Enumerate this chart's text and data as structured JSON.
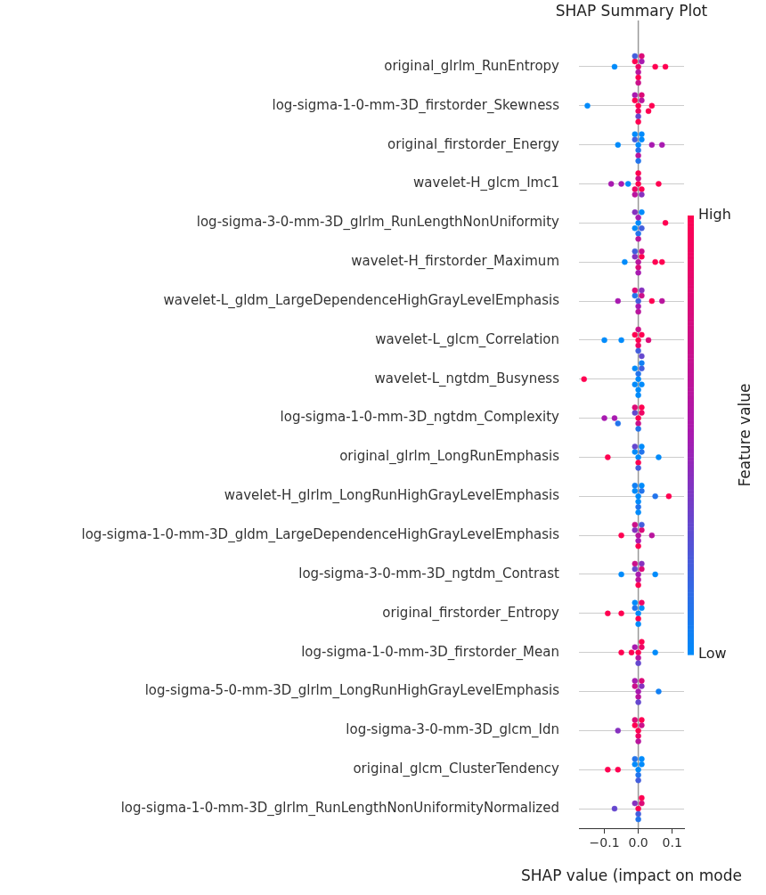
{
  "chart_data": {
    "type": "scatter",
    "orientation": "horizontal",
    "title": "SHAP Summary Plot",
    "xlabel": "SHAP value (impact on mode",
    "clabel": "Feature value",
    "categories": [
      "original_glrlm_RunEntropy",
      "log-sigma-1-0-mm-3D_firstorder_Skewness",
      "original_firstorder_Energy",
      "wavelet-H_glcm_Imc1",
      "log-sigma-3-0-mm-3D_glrlm_RunLengthNonUniformity",
      "wavelet-H_firstorder_Maximum",
      "wavelet-L_gldm_LargeDependenceHighGrayLevelEmphasis",
      "wavelet-L_glcm_Correlation",
      "wavelet-L_ngtdm_Busyness",
      "log-sigma-1-0-mm-3D_ngtdm_Complexity",
      "original_glrlm_LongRunEmphasis",
      "wavelet-H_glrlm_LongRunHighGrayLevelEmphasis",
      "log-sigma-1-0-mm-3D_gldm_LargeDependenceHighGrayLevelEmphasis",
      "log-sigma-3-0-mm-3D_ngtdm_Contrast",
      "original_firstorder_Entropy",
      "log-sigma-1-0-mm-3D_firstorder_Mean",
      "log-sigma-5-0-mm-3D_glrlm_LongRunHighGrayLevelEmphasis",
      "log-sigma-3-0-mm-3D_glcm_Idn",
      "original_glcm_ClusterTendency",
      "log-sigma-1-0-mm-3D_glrlm_RunLengthNonUniformityNormalized"
    ],
    "series": [
      {
        "x": [
          "original_glrlm_RunEntropy",
          "original_glrlm_RunEntropy",
          "original_glrlm_RunEntropy",
          "original_glrlm_RunEntropy",
          "original_glrlm_RunEntropy",
          "original_glrlm_RunEntropy",
          "original_glrlm_RunEntropy",
          "original_glrlm_RunEntropy",
          "original_glrlm_RunEntropy",
          "original_glrlm_RunEntropy",
          "original_glrlm_RunEntropy"
        ],
        "values": [
          -0.07,
          0.05,
          0.08,
          0,
          0,
          -0.01,
          0.01,
          0,
          0.01,
          -0.01,
          0
        ],
        "cvalues": [
          0,
          1,
          1,
          0.9,
          0.6,
          1,
          0.5,
          1,
          0.8,
          0.2,
          0.7
        ],
        "colors": [
          "#008bfb",
          "#ff0051",
          "#ff0051",
          "#ee0564",
          "#b9159d",
          "#ff0051",
          "#a81ab0",
          "#ff0051",
          "#dc0a77",
          "#435edd",
          "#cb108a"
        ]
      },
      {
        "x": [
          "log-sigma-1-0-mm-3D_firstorder_Skewness",
          "log-sigma-1-0-mm-3D_firstorder_Skewness",
          "log-sigma-1-0-mm-3D_firstorder_Skewness",
          "log-sigma-1-0-mm-3D_firstorder_Skewness",
          "log-sigma-1-0-mm-3D_firstorder_Skewness",
          "log-sigma-1-0-mm-3D_firstorder_Skewness",
          "log-sigma-1-0-mm-3D_firstorder_Skewness",
          "log-sigma-1-0-mm-3D_firstorder_Skewness",
          "log-sigma-1-0-mm-3D_firstorder_Skewness",
          "log-sigma-1-0-mm-3D_firstorder_Skewness",
          "log-sigma-1-0-mm-3D_firstorder_Skewness"
        ],
        "values": [
          -0.15,
          0.04,
          0.03,
          0,
          0,
          0.01,
          -0.01,
          0,
          0.01,
          -0.01,
          0
        ],
        "cvalues": [
          0,
          1,
          1,
          1,
          0.9,
          0.6,
          1,
          0.3,
          0.8,
          0.5,
          1
        ],
        "colors": [
          "#008bfb",
          "#ff0051",
          "#ff0051",
          "#ff0051",
          "#ee0564",
          "#b9159d",
          "#ff0051",
          "#6547ce",
          "#dc0a77",
          "#a81ab0",
          "#ff0051"
        ]
      },
      {
        "x": [
          "original_firstorder_Energy",
          "original_firstorder_Energy",
          "original_firstorder_Energy",
          "original_firstorder_Energy",
          "original_firstorder_Energy",
          "original_firstorder_Energy",
          "original_firstorder_Energy",
          "original_firstorder_Energy",
          "original_firstorder_Energy",
          "original_firstorder_Energy",
          "original_firstorder_Energy"
        ],
        "values": [
          -0.06,
          0.04,
          0.07,
          0,
          0,
          0.01,
          -0.01,
          0,
          0.01,
          -0.01,
          0
        ],
        "cvalues": [
          0,
          0.5,
          0.5,
          0,
          0.1,
          0,
          0.2,
          0.6,
          0,
          0,
          0.1
        ],
        "colors": [
          "#008bfb",
          "#a81ab0",
          "#a81ab0",
          "#008bfb",
          "#2274ec",
          "#008bfb",
          "#435edd",
          "#b9159d",
          "#008bfb",
          "#008bfb",
          "#2274ec"
        ]
      },
      {
        "x": [
          "wavelet-H_glcm_Imc1",
          "wavelet-H_glcm_Imc1",
          "wavelet-H_glcm_Imc1",
          "wavelet-H_glcm_Imc1",
          "wavelet-H_glcm_Imc1",
          "wavelet-H_glcm_Imc1",
          "wavelet-H_glcm_Imc1",
          "wavelet-H_glcm_Imc1",
          "wavelet-H_glcm_Imc1",
          "wavelet-H_glcm_Imc1",
          "wavelet-H_glcm_Imc1"
        ],
        "values": [
          -0.08,
          -0.05,
          -0.03,
          0.06,
          0,
          0.01,
          -0.01,
          0,
          0.01,
          0,
          -0.01
        ],
        "cvalues": [
          0.5,
          0.5,
          0,
          1,
          1,
          1,
          0.9,
          0.7,
          0.4,
          1,
          0.6
        ],
        "colors": [
          "#a81ab0",
          "#a81ab0",
          "#008bfb",
          "#ff0051",
          "#ff0051",
          "#ff0051",
          "#ee0564",
          "#cb108a",
          "#8631bf",
          "#ff0051",
          "#b9159d"
        ]
      },
      {
        "x": [
          "log-sigma-3-0-mm-3D_glrlm_RunLengthNonUniformity",
          "log-sigma-3-0-mm-3D_glrlm_RunLengthNonUniformity",
          "log-sigma-3-0-mm-3D_glrlm_RunLengthNonUniformity",
          "log-sigma-3-0-mm-3D_glrlm_RunLengthNonUniformity",
          "log-sigma-3-0-mm-3D_glrlm_RunLengthNonUniformity",
          "log-sigma-3-0-mm-3D_glrlm_RunLengthNonUniformity",
          "log-sigma-3-0-mm-3D_glrlm_RunLengthNonUniformity",
          "log-sigma-3-0-mm-3D_glrlm_RunLengthNonUniformity",
          "log-sigma-3-0-mm-3D_glrlm_RunLengthNonUniformity"
        ],
        "values": [
          0.08,
          0,
          0.01,
          -0.01,
          0,
          0,
          0.01,
          -0.01,
          0
        ],
        "cvalues": [
          1,
          0,
          0.2,
          0,
          0.5,
          0.1,
          0,
          0.4,
          0.6
        ],
        "colors": [
          "#ff0051",
          "#008bfb",
          "#435edd",
          "#008bfb",
          "#a81ab0",
          "#2274ec",
          "#008bfb",
          "#8631bf",
          "#b9159d"
        ]
      },
      {
        "x": [
          "wavelet-H_firstorder_Maximum",
          "wavelet-H_firstorder_Maximum",
          "wavelet-H_firstorder_Maximum",
          "wavelet-H_firstorder_Maximum",
          "wavelet-H_firstorder_Maximum",
          "wavelet-H_firstorder_Maximum",
          "wavelet-H_firstorder_Maximum",
          "wavelet-H_firstorder_Maximum",
          "wavelet-H_firstorder_Maximum",
          "wavelet-H_firstorder_Maximum"
        ],
        "values": [
          -0.04,
          0.05,
          0.07,
          0,
          0,
          0.01,
          -0.01,
          0,
          0.01,
          -0.01
        ],
        "cvalues": [
          0,
          1,
          1,
          0.6,
          0.8,
          1,
          0.4,
          0.5,
          0.7,
          0.2
        ],
        "colors": [
          "#008bfb",
          "#ff0051",
          "#ff0051",
          "#b9159d",
          "#dc0a77",
          "#ff0051",
          "#8631bf",
          "#a81ab0",
          "#cb108a",
          "#435edd"
        ]
      },
      {
        "x": [
          "wavelet-L_gldm_LargeDependenceHighGrayLevelEmphasis",
          "wavelet-L_gldm_LargeDependenceHighGrayLevelEmphasis",
          "wavelet-L_gldm_LargeDependenceHighGrayLevelEmphasis",
          "wavelet-L_gldm_LargeDependenceHighGrayLevelEmphasis",
          "wavelet-L_gldm_LargeDependenceHighGrayLevelEmphasis",
          "wavelet-L_gldm_LargeDependenceHighGrayLevelEmphasis",
          "wavelet-L_gldm_LargeDependenceHighGrayLevelEmphasis",
          "wavelet-L_gldm_LargeDependenceHighGrayLevelEmphasis",
          "wavelet-L_gldm_LargeDependenceHighGrayLevelEmphasis",
          "wavelet-L_gldm_LargeDependenceHighGrayLevelEmphasis"
        ],
        "values": [
          -0.06,
          0.04,
          0.07,
          0,
          0,
          0.01,
          -0.01,
          0,
          0.01,
          -0.01
        ],
        "cvalues": [
          0.5,
          1,
          0.6,
          0.2,
          0.5,
          0.7,
          0.1,
          0.6,
          0.4,
          0.8
        ],
        "colors": [
          "#a81ab0",
          "#ff0051",
          "#b9159d",
          "#435edd",
          "#a81ab0",
          "#cb108a",
          "#2274ec",
          "#b9159d",
          "#8631bf",
          "#dc0a77"
        ]
      },
      {
        "x": [
          "wavelet-L_glcm_Correlation",
          "wavelet-L_glcm_Correlation",
          "wavelet-L_glcm_Correlation",
          "wavelet-L_glcm_Correlation",
          "wavelet-L_glcm_Correlation",
          "wavelet-L_glcm_Correlation",
          "wavelet-L_glcm_Correlation",
          "wavelet-L_glcm_Correlation",
          "wavelet-L_glcm_Correlation",
          "wavelet-L_glcm_Correlation"
        ],
        "values": [
          -0.1,
          -0.05,
          0.03,
          0,
          0,
          0.01,
          -0.01,
          0,
          0,
          0.01
        ],
        "cvalues": [
          0,
          0,
          0.8,
          1,
          0.9,
          1,
          1,
          0.2,
          0.7,
          0.3
        ],
        "colors": [
          "#008bfb",
          "#008bfb",
          "#dc0a77",
          "#ff0051",
          "#ee0564",
          "#ff0051",
          "#ff0051",
          "#435edd",
          "#cb108a",
          "#6547ce"
        ]
      },
      {
        "x": [
          "wavelet-L_ngtdm_Busyness",
          "wavelet-L_ngtdm_Busyness",
          "wavelet-L_ngtdm_Busyness",
          "wavelet-L_ngtdm_Busyness",
          "wavelet-L_ngtdm_Busyness",
          "wavelet-L_ngtdm_Busyness",
          "wavelet-L_ngtdm_Busyness",
          "wavelet-L_ngtdm_Busyness",
          "wavelet-L_ngtdm_Busyness",
          "wavelet-L_ngtdm_Busyness"
        ],
        "values": [
          -0.16,
          0,
          0.01,
          -0.01,
          0,
          0,
          0.01,
          -0.01,
          0,
          0.01
        ],
        "cvalues": [
          1,
          0,
          0,
          0,
          0.1,
          0,
          0.2,
          0,
          0,
          0.05
        ],
        "colors": [
          "#ff0051",
          "#008bfb",
          "#008bfb",
          "#008bfb",
          "#2274ec",
          "#008bfb",
          "#435edd",
          "#008bfb",
          "#008bfb",
          "#1180f4"
        ]
      },
      {
        "x": [
          "log-sigma-1-0-mm-3D_ngtdm_Complexity",
          "log-sigma-1-0-mm-3D_ngtdm_Complexity",
          "log-sigma-1-0-mm-3D_ngtdm_Complexity",
          "log-sigma-1-0-mm-3D_ngtdm_Complexity",
          "log-sigma-1-0-mm-3D_ngtdm_Complexity",
          "log-sigma-1-0-mm-3D_ngtdm_Complexity",
          "log-sigma-1-0-mm-3D_ngtdm_Complexity",
          "log-sigma-1-0-mm-3D_ngtdm_Complexity",
          "log-sigma-1-0-mm-3D_ngtdm_Complexity",
          "log-sigma-1-0-mm-3D_ngtdm_Complexity"
        ],
        "values": [
          -0.1,
          -0.07,
          -0.06,
          0,
          0,
          0.01,
          -0.01,
          0,
          0.01,
          -0.01
        ],
        "cvalues": [
          0.5,
          0.5,
          0.1,
          1,
          0.7,
          0.9,
          0.3,
          0.1,
          1,
          0.8
        ],
        "colors": [
          "#a81ab0",
          "#a81ab0",
          "#2274ec",
          "#ff0051",
          "#cb108a",
          "#ee0564",
          "#6547ce",
          "#2274ec",
          "#ff0051",
          "#dc0a77"
        ]
      },
      {
        "x": [
          "original_glrlm_LongRunEmphasis",
          "original_glrlm_LongRunEmphasis",
          "original_glrlm_LongRunEmphasis",
          "original_glrlm_LongRunEmphasis",
          "original_glrlm_LongRunEmphasis",
          "original_glrlm_LongRunEmphasis",
          "original_glrlm_LongRunEmphasis",
          "original_glrlm_LongRunEmphasis",
          "original_glrlm_LongRunEmphasis"
        ],
        "values": [
          -0.09,
          0.06,
          0,
          0,
          0.01,
          -0.01,
          0,
          0.01,
          -0.01
        ],
        "cvalues": [
          1,
          0,
          0,
          1,
          0.1,
          0,
          0.2,
          0,
          0.3
        ],
        "colors": [
          "#ff0051",
          "#008bfb",
          "#008bfb",
          "#ff0051",
          "#2274ec",
          "#008bfb",
          "#435edd",
          "#008bfb",
          "#6547ce"
        ]
      },
      {
        "x": [
          "wavelet-H_glrlm_LongRunHighGrayLevelEmphasis",
          "wavelet-H_glrlm_LongRunHighGrayLevelEmphasis",
          "wavelet-H_glrlm_LongRunHighGrayLevelEmphasis",
          "wavelet-H_glrlm_LongRunHighGrayLevelEmphasis",
          "wavelet-H_glrlm_LongRunHighGrayLevelEmphasis",
          "wavelet-H_glrlm_LongRunHighGrayLevelEmphasis",
          "wavelet-H_glrlm_LongRunHighGrayLevelEmphasis",
          "wavelet-H_glrlm_LongRunHighGrayLevelEmphasis",
          "wavelet-H_glrlm_LongRunHighGrayLevelEmphasis",
          "wavelet-H_glrlm_LongRunHighGrayLevelEmphasis"
        ],
        "values": [
          0.05,
          0.09,
          0,
          0,
          0.01,
          -0.01,
          0,
          0.01,
          -0.01,
          0
        ],
        "cvalues": [
          0.1,
          1,
          0,
          0,
          0.1,
          0,
          0.1,
          0,
          0.05,
          0
        ],
        "colors": [
          "#2274ec",
          "#ff0051",
          "#008bfb",
          "#008bfb",
          "#2274ec",
          "#008bfb",
          "#2274ec",
          "#008bfb",
          "#1180f4",
          "#008bfb"
        ]
      },
      {
        "x": [
          "log-sigma-1-0-mm-3D_gldm_LargeDependenceHighGrayLevelEmphasis",
          "log-sigma-1-0-mm-3D_gldm_LargeDependenceHighGrayLevelEmphasis",
          "log-sigma-1-0-mm-3D_gldm_LargeDependenceHighGrayLevelEmphasis",
          "log-sigma-1-0-mm-3D_gldm_LargeDependenceHighGrayLevelEmphasis",
          "log-sigma-1-0-mm-3D_gldm_LargeDependenceHighGrayLevelEmphasis",
          "log-sigma-1-0-mm-3D_gldm_LargeDependenceHighGrayLevelEmphasis",
          "log-sigma-1-0-mm-3D_gldm_LargeDependenceHighGrayLevelEmphasis",
          "log-sigma-1-0-mm-3D_gldm_LargeDependenceHighGrayLevelEmphasis",
          "log-sigma-1-0-mm-3D_gldm_LargeDependenceHighGrayLevelEmphasis"
        ],
        "values": [
          -0.05,
          0.04,
          0,
          0,
          0.01,
          -0.01,
          0,
          -0.01,
          0.01
        ],
        "cvalues": [
          1,
          0.6,
          0.6,
          0.5,
          0.8,
          0.4,
          1,
          0.7,
          0.2
        ],
        "colors": [
          "#ff0051",
          "#b9159d",
          "#b9159d",
          "#a81ab0",
          "#dc0a77",
          "#8631bf",
          "#ff0051",
          "#cb108a",
          "#435edd"
        ]
      },
      {
        "x": [
          "log-sigma-3-0-mm-3D_ngtdm_Contrast",
          "log-sigma-3-0-mm-3D_ngtdm_Contrast",
          "log-sigma-3-0-mm-3D_ngtdm_Contrast",
          "log-sigma-3-0-mm-3D_ngtdm_Contrast",
          "log-sigma-3-0-mm-3D_ngtdm_Contrast",
          "log-sigma-3-0-mm-3D_ngtdm_Contrast",
          "log-sigma-3-0-mm-3D_ngtdm_Contrast",
          "log-sigma-3-0-mm-3D_ngtdm_Contrast",
          "log-sigma-3-0-mm-3D_ngtdm_Contrast"
        ],
        "values": [
          -0.05,
          0.05,
          0,
          0,
          0.01,
          -0.01,
          0,
          0.01,
          -0.01
        ],
        "cvalues": [
          0,
          0,
          0.5,
          0.6,
          0.8,
          0.3,
          1,
          0.4,
          0.7
        ],
        "colors": [
          "#008bfb",
          "#008bfb",
          "#a81ab0",
          "#b9159d",
          "#dc0a77",
          "#6547ce",
          "#ff0051",
          "#8631bf",
          "#cb108a"
        ]
      },
      {
        "x": [
          "original_firstorder_Entropy",
          "original_firstorder_Entropy",
          "original_firstorder_Entropy",
          "original_firstorder_Entropy",
          "original_firstorder_Entropy",
          "original_firstorder_Entropy",
          "original_firstorder_Entropy",
          "original_firstorder_Entropy",
          "original_firstorder_Entropy"
        ],
        "values": [
          -0.09,
          -0.05,
          0,
          0,
          0.01,
          -0.01,
          0,
          0.01,
          -0.01
        ],
        "cvalues": [
          1,
          1,
          0,
          1,
          0,
          0.1,
          0,
          0.9,
          0
        ],
        "colors": [
          "#ff0051",
          "#ff0051",
          "#008bfb",
          "#ff0051",
          "#008bfb",
          "#2274ec",
          "#008bfb",
          "#ee0564",
          "#008bfb"
        ]
      },
      {
        "x": [
          "log-sigma-1-0-mm-3D_firstorder_Mean",
          "log-sigma-1-0-mm-3D_firstorder_Mean",
          "log-sigma-1-0-mm-3D_firstorder_Mean",
          "log-sigma-1-0-mm-3D_firstorder_Mean",
          "log-sigma-1-0-mm-3D_firstorder_Mean",
          "log-sigma-1-0-mm-3D_firstorder_Mean",
          "log-sigma-1-0-mm-3D_firstorder_Mean",
          "log-sigma-1-0-mm-3D_firstorder_Mean",
          "log-sigma-1-0-mm-3D_firstorder_Mean"
        ],
        "values": [
          -0.05,
          -0.02,
          0.05,
          0,
          0,
          0.01,
          -0.01,
          0,
          0.01
        ],
        "cvalues": [
          1,
          1,
          0,
          1,
          0.6,
          0.9,
          0.5,
          0.3,
          1
        ],
        "colors": [
          "#ff0051",
          "#ff0051",
          "#008bfb",
          "#ff0051",
          "#b9159d",
          "#ee0564",
          "#a81ab0",
          "#6547ce",
          "#ff0051"
        ]
      },
      {
        "x": [
          "log-sigma-5-0-mm-3D_glrlm_LongRunHighGrayLevelEmphasis",
          "log-sigma-5-0-mm-3D_glrlm_LongRunHighGrayLevelEmphasis",
          "log-sigma-5-0-mm-3D_glrlm_LongRunHighGrayLevelEmphasis",
          "log-sigma-5-0-mm-3D_glrlm_LongRunHighGrayLevelEmphasis",
          "log-sigma-5-0-mm-3D_glrlm_LongRunHighGrayLevelEmphasis",
          "log-sigma-5-0-mm-3D_glrlm_LongRunHighGrayLevelEmphasis",
          "log-sigma-5-0-mm-3D_glrlm_LongRunHighGrayLevelEmphasis",
          "log-sigma-5-0-mm-3D_glrlm_LongRunHighGrayLevelEmphasis"
        ],
        "values": [
          0.06,
          0,
          0,
          0.01,
          -0.01,
          0,
          0.01,
          -0.01
        ],
        "cvalues": [
          0.05,
          0.5,
          0.6,
          0.4,
          0.7,
          0.3,
          0.8,
          0.5
        ],
        "colors": [
          "#1180f4",
          "#a81ab0",
          "#b9159d",
          "#8631bf",
          "#cb108a",
          "#6547ce",
          "#dc0a77",
          "#a81ab0"
        ]
      },
      {
        "x": [
          "log-sigma-3-0-mm-3D_glcm_Idn",
          "log-sigma-3-0-mm-3D_glcm_Idn",
          "log-sigma-3-0-mm-3D_glcm_Idn",
          "log-sigma-3-0-mm-3D_glcm_Idn",
          "log-sigma-3-0-mm-3D_glcm_Idn",
          "log-sigma-3-0-mm-3D_glcm_Idn",
          "log-sigma-3-0-mm-3D_glcm_Idn",
          "log-sigma-3-0-mm-3D_glcm_Idn"
        ],
        "values": [
          -0.06,
          0,
          0,
          0.01,
          -0.01,
          0,
          0.01,
          -0.01
        ],
        "cvalues": [
          0.4,
          1,
          0.9,
          0.7,
          1,
          0.6,
          1,
          0.8
        ],
        "colors": [
          "#8631bf",
          "#ff0051",
          "#ee0564",
          "#cb108a",
          "#ff0051",
          "#b9159d",
          "#ff0051",
          "#dc0a77"
        ]
      },
      {
        "x": [
          "original_glcm_ClusterTendency",
          "original_glcm_ClusterTendency",
          "original_glcm_ClusterTendency",
          "original_glcm_ClusterTendency",
          "original_glcm_ClusterTendency",
          "original_glcm_ClusterTendency",
          "original_glcm_ClusterTendency",
          "original_glcm_ClusterTendency",
          "original_glcm_ClusterTendency"
        ],
        "values": [
          -0.09,
          -0.06,
          0,
          0,
          0.01,
          -0.01,
          0,
          0.01,
          -0.01
        ],
        "cvalues": [
          1,
          1,
          0,
          0.1,
          0,
          0,
          0.2,
          0,
          0.1
        ],
        "colors": [
          "#ff0051",
          "#ff0051",
          "#008bfb",
          "#2274ec",
          "#008bfb",
          "#008bfb",
          "#435edd",
          "#008bfb",
          "#2274ec"
        ]
      },
      {
        "x": [
          "log-sigma-1-0-mm-3D_glrlm_RunLengthNonUniformityNormalized",
          "log-sigma-1-0-mm-3D_glrlm_RunLengthNonUniformityNormalized",
          "log-sigma-1-0-mm-3D_glrlm_RunLengthNonUniformityNormalized",
          "log-sigma-1-0-mm-3D_glrlm_RunLengthNonUniformityNormalized",
          "log-sigma-1-0-mm-3D_glrlm_RunLengthNonUniformityNormalized",
          "log-sigma-1-0-mm-3D_glrlm_RunLengthNonUniformityNormalized",
          "log-sigma-1-0-mm-3D_glrlm_RunLengthNonUniformityNormalized"
        ],
        "values": [
          -0.07,
          0,
          0,
          0.01,
          -0.01,
          0,
          0.01
        ],
        "cvalues": [
          0.3,
          1,
          0.2,
          0.8,
          0.4,
          0.1,
          1
        ],
        "colors": [
          "#6547ce",
          "#ff0051",
          "#435edd",
          "#dc0a77",
          "#8631bf",
          "#2274ec",
          "#ff0051"
        ]
      }
    ],
    "xlim": [
      -0.175,
      0.135
    ],
    "xticks": [
      {
        "value": -0.1,
        "label": "−0.1"
      },
      {
        "value": 0,
        "label": "0.0"
      },
      {
        "value": 0.1,
        "label": "0.1"
      }
    ],
    "clim": [
      0,
      1
    ],
    "cticks": [
      {
        "value": 0,
        "label": "Low"
      },
      {
        "value": 1,
        "label": "High"
      }
    ],
    "ref_lines": [
      {
        "axis": "x",
        "value": 0,
        "color": "#999999"
      }
    ],
    "grid": "y",
    "marker": "circle"
  }
}
